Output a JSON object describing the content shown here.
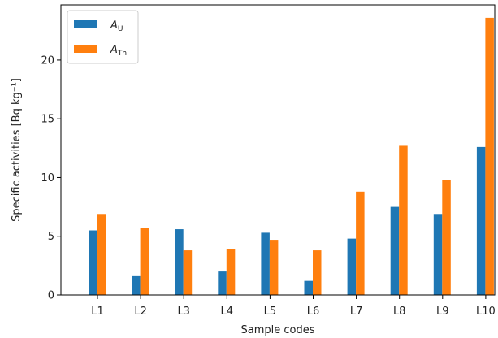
{
  "chart_data": {
    "type": "bar",
    "xlabel": "Sample codes",
    "ylabel": "Specific activities [Bq kg⁻¹]",
    "ylim": [
      0,
      24.7
    ],
    "yticks": [
      0,
      5,
      10,
      15,
      20
    ],
    "categories": [
      "L1",
      "L2",
      "L3",
      "L4",
      "L5",
      "L6",
      "L7",
      "L8",
      "L9",
      "L10"
    ],
    "series": [
      {
        "name": "A_U",
        "legend_main": "A",
        "legend_sub": "U",
        "color": "#1f77b4",
        "values": [
          5.5,
          1.6,
          5.6,
          2.0,
          5.3,
          1.2,
          4.8,
          7.5,
          6.9,
          12.6
        ]
      },
      {
        "name": "A_Th",
        "legend_main": "A",
        "legend_sub": "Th",
        "color": "#ff7f0e",
        "values": [
          6.9,
          5.7,
          3.8,
          3.9,
          4.7,
          3.8,
          8.8,
          12.7,
          9.8,
          23.6
        ]
      }
    ],
    "legend_position": "top-left",
    "grid": false
  }
}
